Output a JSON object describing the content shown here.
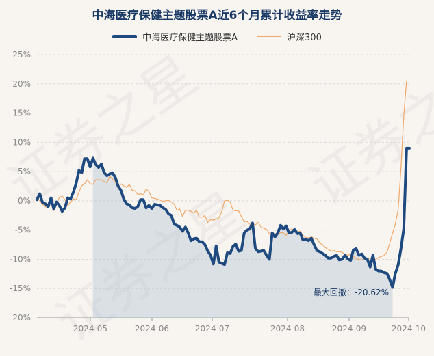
{
  "chart_data": {
    "type": "line",
    "title": "中海医疗保健主题股票A近6个月累计收益率走势",
    "xlabel": "",
    "ylabel": "",
    "ylim": [
      -20,
      25
    ],
    "yticks": [
      "25%",
      "20%",
      "15%",
      "10%",
      "5%",
      "0%",
      "-5%",
      "-10%",
      "-15%",
      "-20%"
    ],
    "xticks": [
      "2024-05",
      "2024-06",
      "2024-07",
      "2024-08",
      "2024-09",
      "2024-10"
    ],
    "legend_position": "top-center",
    "grid": true,
    "series": [
      {
        "name": "中海医疗保健主题股票A",
        "color": "#1f4a80",
        "values": [
          0.2,
          1.2,
          -0.3,
          -0.5,
          -1,
          0.5,
          -1.4,
          -0.2,
          -0.8,
          -1.8,
          -1.2,
          0.5,
          0.3,
          1.5,
          3,
          5.2,
          4.8,
          7.2,
          7.2,
          5.8,
          7.3,
          6.2,
          5.7,
          6.3,
          4.8,
          4.3,
          4.6,
          4.8,
          4,
          2.5,
          1.8,
          0.3,
          -0.5,
          -0.7,
          -1.2,
          -1.3,
          -1,
          0.2,
          0.2,
          -1.2,
          -0.8,
          -1.3,
          -0.6,
          -0.7,
          -0.8,
          -1.2,
          -1.5,
          -2.2,
          -2.5,
          -4,
          -4.2,
          -4.5,
          -5.2,
          -4.5,
          -5.5,
          -6.8,
          -6.5,
          -6.4,
          -7,
          -7,
          -7.5,
          -8.6,
          -9.3,
          -10.8,
          -7.7,
          -10.5,
          -10.7,
          -10.9,
          -8.9,
          -9,
          -7.8,
          -7.4,
          -8.6,
          -8.5,
          -5.5,
          -5,
          -4.8,
          -3.8,
          -8.1,
          -8.7,
          -8.6,
          -8.5,
          -9.3,
          -10,
          -5.5,
          -6.2,
          -5.5,
          -4.2,
          -4.8,
          -4.3,
          -5.5,
          -5.4,
          -4.9,
          -5.6,
          -5.5,
          -6.7,
          -6.6,
          -6.8,
          -6.4,
          -7.5,
          -8.5,
          -8.7,
          -9,
          -9.3,
          -9.8,
          -9.8,
          -9.5,
          -9.3,
          -10.1,
          -10,
          -9.3,
          -9.9,
          -10.2,
          -8.4,
          -8.2,
          -9.3,
          -9.1,
          -9.8,
          -10,
          -11.3,
          -9.3,
          -11.7,
          -12,
          -12,
          -12.3,
          -12.4,
          -13.5,
          -14.8,
          -12.4,
          -11,
          -8.2,
          -4.8,
          9,
          9
        ]
      },
      {
        "name": "沪深300",
        "color": "#f0a868",
        "values": [
          0.6,
          0,
          -0.6,
          -1,
          -1.2,
          -0.1,
          -1.7,
          -0.6,
          0.6,
          0.8,
          0.2,
          -0.8,
          -0.2,
          0.3,
          0.2,
          1.5,
          2.6,
          2.9,
          3.6,
          2.9,
          2.8,
          3.6,
          3.6,
          3.6,
          3.3,
          3.1,
          4.2,
          3.7,
          3.2,
          2.1,
          2.9,
          2.6,
          2.3,
          2.8,
          1.8,
          1.7,
          1.1,
          1.2,
          1,
          2,
          1.6,
          0.5,
          0.4,
          0.3,
          0.1,
          -0.1,
          0,
          0.1,
          -0.2,
          -0.6,
          -1.6,
          -1.4,
          -2.7,
          -1.6,
          -1.6,
          -1.8,
          -2.1,
          -1.6,
          -2.8,
          -2.8,
          -2.5,
          -3.7,
          -3.2,
          -3.3,
          -3.1,
          -2.9,
          -1.8,
          0,
          0.1,
          -0.2,
          -1.6,
          -1.7,
          -1.7,
          -2.7,
          -3.6,
          -3.5,
          -4,
          -4.1,
          -4.1,
          -3.7,
          -4.5,
          -4.7,
          -4.9,
          -5.6,
          -6,
          -5.6,
          -5.7,
          -5.4,
          -5.5,
          -5.9,
          -5.1,
          -4.8,
          -5.2,
          -5.3,
          -5.2,
          -5.9,
          -6.3,
          -6.3,
          -6.2,
          -6.4,
          -6.5,
          -7.2,
          -7.5,
          -8,
          -8.3,
          -8.6,
          -8.5,
          -8.7,
          -8.7,
          -8.8,
          -9.1,
          -9.3,
          -9.2,
          -9.5,
          -9.9,
          -10,
          -10.1,
          -9.9,
          -10.1,
          -9.7,
          -10.2,
          -10,
          -9.7,
          -9.5,
          -9.3,
          -8.8,
          -7.2,
          -5.5,
          -4,
          -1.5,
          5.5,
          14.5,
          20.5
        ]
      }
    ],
    "annotation": {
      "text": "最大回撤：-20.62%"
    }
  },
  "watermark": "证券之星"
}
